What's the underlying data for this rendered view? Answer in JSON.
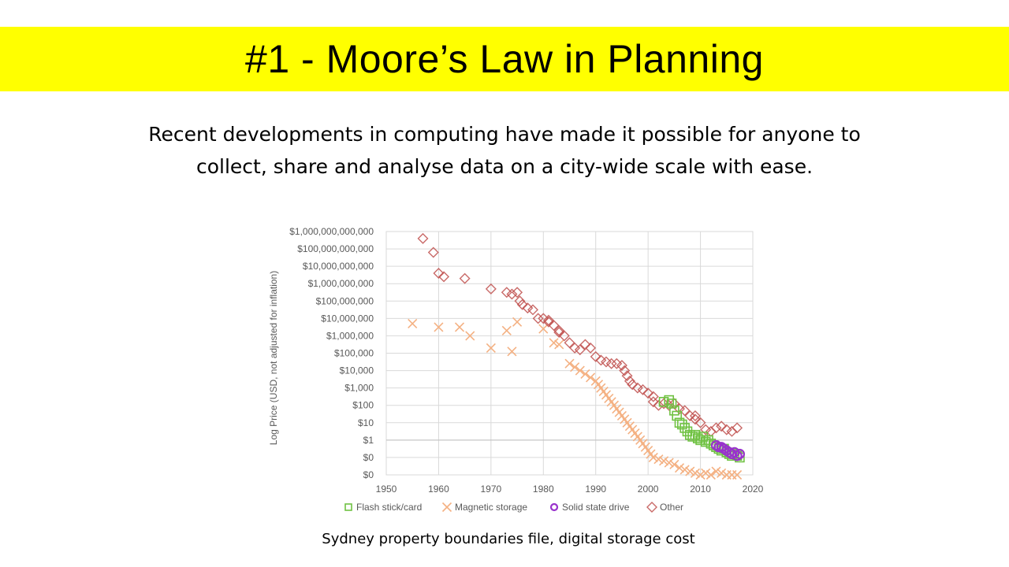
{
  "slide": {
    "title": "#1 - Moore’s Law in Planning",
    "subtitle_line1": "Recent developments in computing have made it possible for anyone to",
    "subtitle_line2": "collect, share and analyse data on a city-wide scale with ease.",
    "caption": "Sydney property boundaries file, digital storage cost"
  },
  "chart_data": {
    "type": "scatter",
    "title": "",
    "xlabel": "",
    "ylabel": "Log Price (USD, not adjusted for inflation)",
    "xlim": [
      1950,
      2020
    ],
    "x_ticks": [
      1950,
      1960,
      1970,
      1980,
      1990,
      2000,
      2010,
      2020
    ],
    "ylim": [
      -2,
      12
    ],
    "y_scale": "log10",
    "y_tick_labels": [
      "$0",
      "$0",
      "$1",
      "$10",
      "$100",
      "$1,000",
      "$10,000",
      "$100,000",
      "$1,000,000",
      "$10,000,000",
      "$100,000,000",
      "$1,000,000,000",
      "$10,000,000,000",
      "$100,000,000,000",
      "$1,000,000,000,000"
    ],
    "grid": true,
    "legend_position": "bottom",
    "series": [
      {
        "name": "Flash stick/card",
        "marker": "square",
        "color": "#70c243",
        "points": [
          [
            2003,
            2.2
          ],
          [
            2004,
            2.3
          ],
          [
            2004.5,
            2.1
          ],
          [
            2005,
            1.7
          ],
          [
            2005.5,
            1.4
          ],
          [
            2006,
            1.0
          ],
          [
            2006.5,
            0.9
          ],
          [
            2007,
            0.7
          ],
          [
            2007.5,
            0.5
          ],
          [
            2008,
            0.3
          ],
          [
            2008.5,
            0.2
          ],
          [
            2009,
            0.3
          ],
          [
            2009.5,
            0.1
          ],
          [
            2010,
            0.0
          ],
          [
            2010.5,
            0.2
          ],
          [
            2011,
            -0.1
          ],
          [
            2011.5,
            0.0
          ],
          [
            2012,
            -0.2
          ],
          [
            2012.5,
            -0.3
          ],
          [
            2013,
            -0.4
          ],
          [
            2013.5,
            -0.5
          ],
          [
            2014,
            -0.6
          ],
          [
            2014.5,
            -0.5
          ],
          [
            2015,
            -0.7
          ],
          [
            2015.5,
            -0.8
          ],
          [
            2016,
            -0.9
          ],
          [
            2016.5,
            -0.8
          ],
          [
            2017,
            -0.9
          ],
          [
            2017.5,
            -1.0
          ]
        ]
      },
      {
        "name": "Magnetic storage",
        "marker": "x",
        "color": "#f4b183",
        "points": [
          [
            1955,
            6.7
          ],
          [
            1960,
            6.5
          ],
          [
            1964,
            6.5
          ],
          [
            1966,
            6.0
          ],
          [
            1970,
            5.3
          ],
          [
            1973,
            6.3
          ],
          [
            1974,
            5.1
          ],
          [
            1975,
            6.8
          ],
          [
            1980,
            6.4
          ],
          [
            1982,
            5.6
          ],
          [
            1983,
            5.5
          ],
          [
            1985,
            4.4
          ],
          [
            1986,
            4.2
          ],
          [
            1987,
            4.0
          ],
          [
            1988,
            3.8
          ],
          [
            1989,
            3.6
          ],
          [
            1990,
            3.4
          ],
          [
            1990.5,
            3.2
          ],
          [
            1991,
            3.0
          ],
          [
            1991.5,
            2.8
          ],
          [
            1992,
            2.6
          ],
          [
            1992.5,
            2.4
          ],
          [
            1993,
            2.2
          ],
          [
            1993.5,
            2.0
          ],
          [
            1994,
            1.8
          ],
          [
            1994.5,
            1.6
          ],
          [
            1995,
            1.4
          ],
          [
            1995.5,
            1.2
          ],
          [
            1996,
            1.0
          ],
          [
            1996.5,
            0.8
          ],
          [
            1997,
            0.6
          ],
          [
            1997.5,
            0.4
          ],
          [
            1998,
            0.2
          ],
          [
            1998.5,
            0.0
          ],
          [
            1999,
            -0.2
          ],
          [
            1999.5,
            -0.4
          ],
          [
            2000,
            -0.6
          ],
          [
            2000.5,
            -0.8
          ],
          [
            2001,
            -1.0
          ],
          [
            2002,
            -1.1
          ],
          [
            2003,
            -1.2
          ],
          [
            2004,
            -1.3
          ],
          [
            2005,
            -1.4
          ],
          [
            2006,
            -1.6
          ],
          [
            2007,
            -1.7
          ],
          [
            2008,
            -1.8
          ],
          [
            2009,
            -1.9
          ],
          [
            2010,
            -2.0
          ],
          [
            2011,
            -1.9
          ],
          [
            2012,
            -2.0
          ],
          [
            2013,
            -1.8
          ],
          [
            2014,
            -1.9
          ],
          [
            2015,
            -2.0
          ],
          [
            2016,
            -2.0
          ],
          [
            2017,
            -2.0
          ]
        ]
      },
      {
        "name": "Solid state drive",
        "marker": "circle",
        "color": "#9933cc",
        "points": [
          [
            2013,
            -0.3
          ],
          [
            2013.5,
            -0.4
          ],
          [
            2014,
            -0.4
          ],
          [
            2014.5,
            -0.5
          ],
          [
            2015,
            -0.6
          ],
          [
            2015.5,
            -0.7
          ],
          [
            2016,
            -0.8
          ],
          [
            2016.5,
            -0.7
          ],
          [
            2017,
            -0.9
          ],
          [
            2017.5,
            -0.8
          ]
        ]
      },
      {
        "name": "Other",
        "marker": "diamond",
        "color": "#c0504d",
        "points": [
          [
            1957,
            11.6
          ],
          [
            1959,
            10.8
          ],
          [
            1960,
            9.6
          ],
          [
            1965,
            9.3
          ],
          [
            1970,
            8.7
          ],
          [
            1973,
            8.5
          ],
          [
            1974,
            8.4
          ],
          [
            1975,
            8.5
          ],
          [
            1975.5,
            8.0
          ],
          [
            1976,
            7.8
          ],
          [
            1977,
            7.6
          ],
          [
            1978,
            7.5
          ],
          [
            1979,
            7.0
          ],
          [
            1980,
            7.0
          ],
          [
            1981,
            6.9
          ],
          [
            1982,
            6.6
          ],
          [
            1983,
            6.2
          ],
          [
            1984,
            6.0
          ],
          [
            1985,
            5.6
          ],
          [
            1986,
            5.3
          ],
          [
            1987,
            5.2
          ],
          [
            1988,
            5.5
          ],
          [
            1989,
            5.3
          ],
          [
            1990,
            4.8
          ],
          [
            1991,
            4.6
          ],
          [
            1992,
            4.5
          ],
          [
            1993,
            4.4
          ],
          [
            1994,
            4.4
          ],
          [
            1995,
            4.3
          ],
          [
            1995.5,
            4.0
          ],
          [
            1996,
            3.7
          ],
          [
            1996.5,
            3.4
          ],
          [
            1997,
            3.2
          ],
          [
            1998,
            3.0
          ],
          [
            1999,
            2.9
          ],
          [
            2000,
            2.7
          ],
          [
            2001,
            2.2
          ],
          [
            2002,
            2.0
          ],
          [
            2003,
            2.1
          ],
          [
            2004,
            2.0
          ],
          [
            2005,
            2.1
          ],
          [
            2006,
            1.8
          ],
          [
            2007,
            1.7
          ],
          [
            2008,
            1.4
          ],
          [
            2009,
            1.2
          ],
          [
            2010,
            1.0
          ],
          [
            2011,
            0.6
          ],
          [
            2012,
            0.5
          ],
          [
            2013,
            0.7
          ],
          [
            2014,
            0.8
          ],
          [
            2015,
            0.6
          ],
          [
            2016,
            0.5
          ],
          [
            2017,
            0.7
          ],
          [
            1961,
            9.4
          ],
          [
            1981,
            6.8
          ],
          [
            1983,
            6.3
          ],
          [
            2001,
            2.5
          ],
          [
            2009,
            1.4
          ]
        ]
      }
    ]
  }
}
